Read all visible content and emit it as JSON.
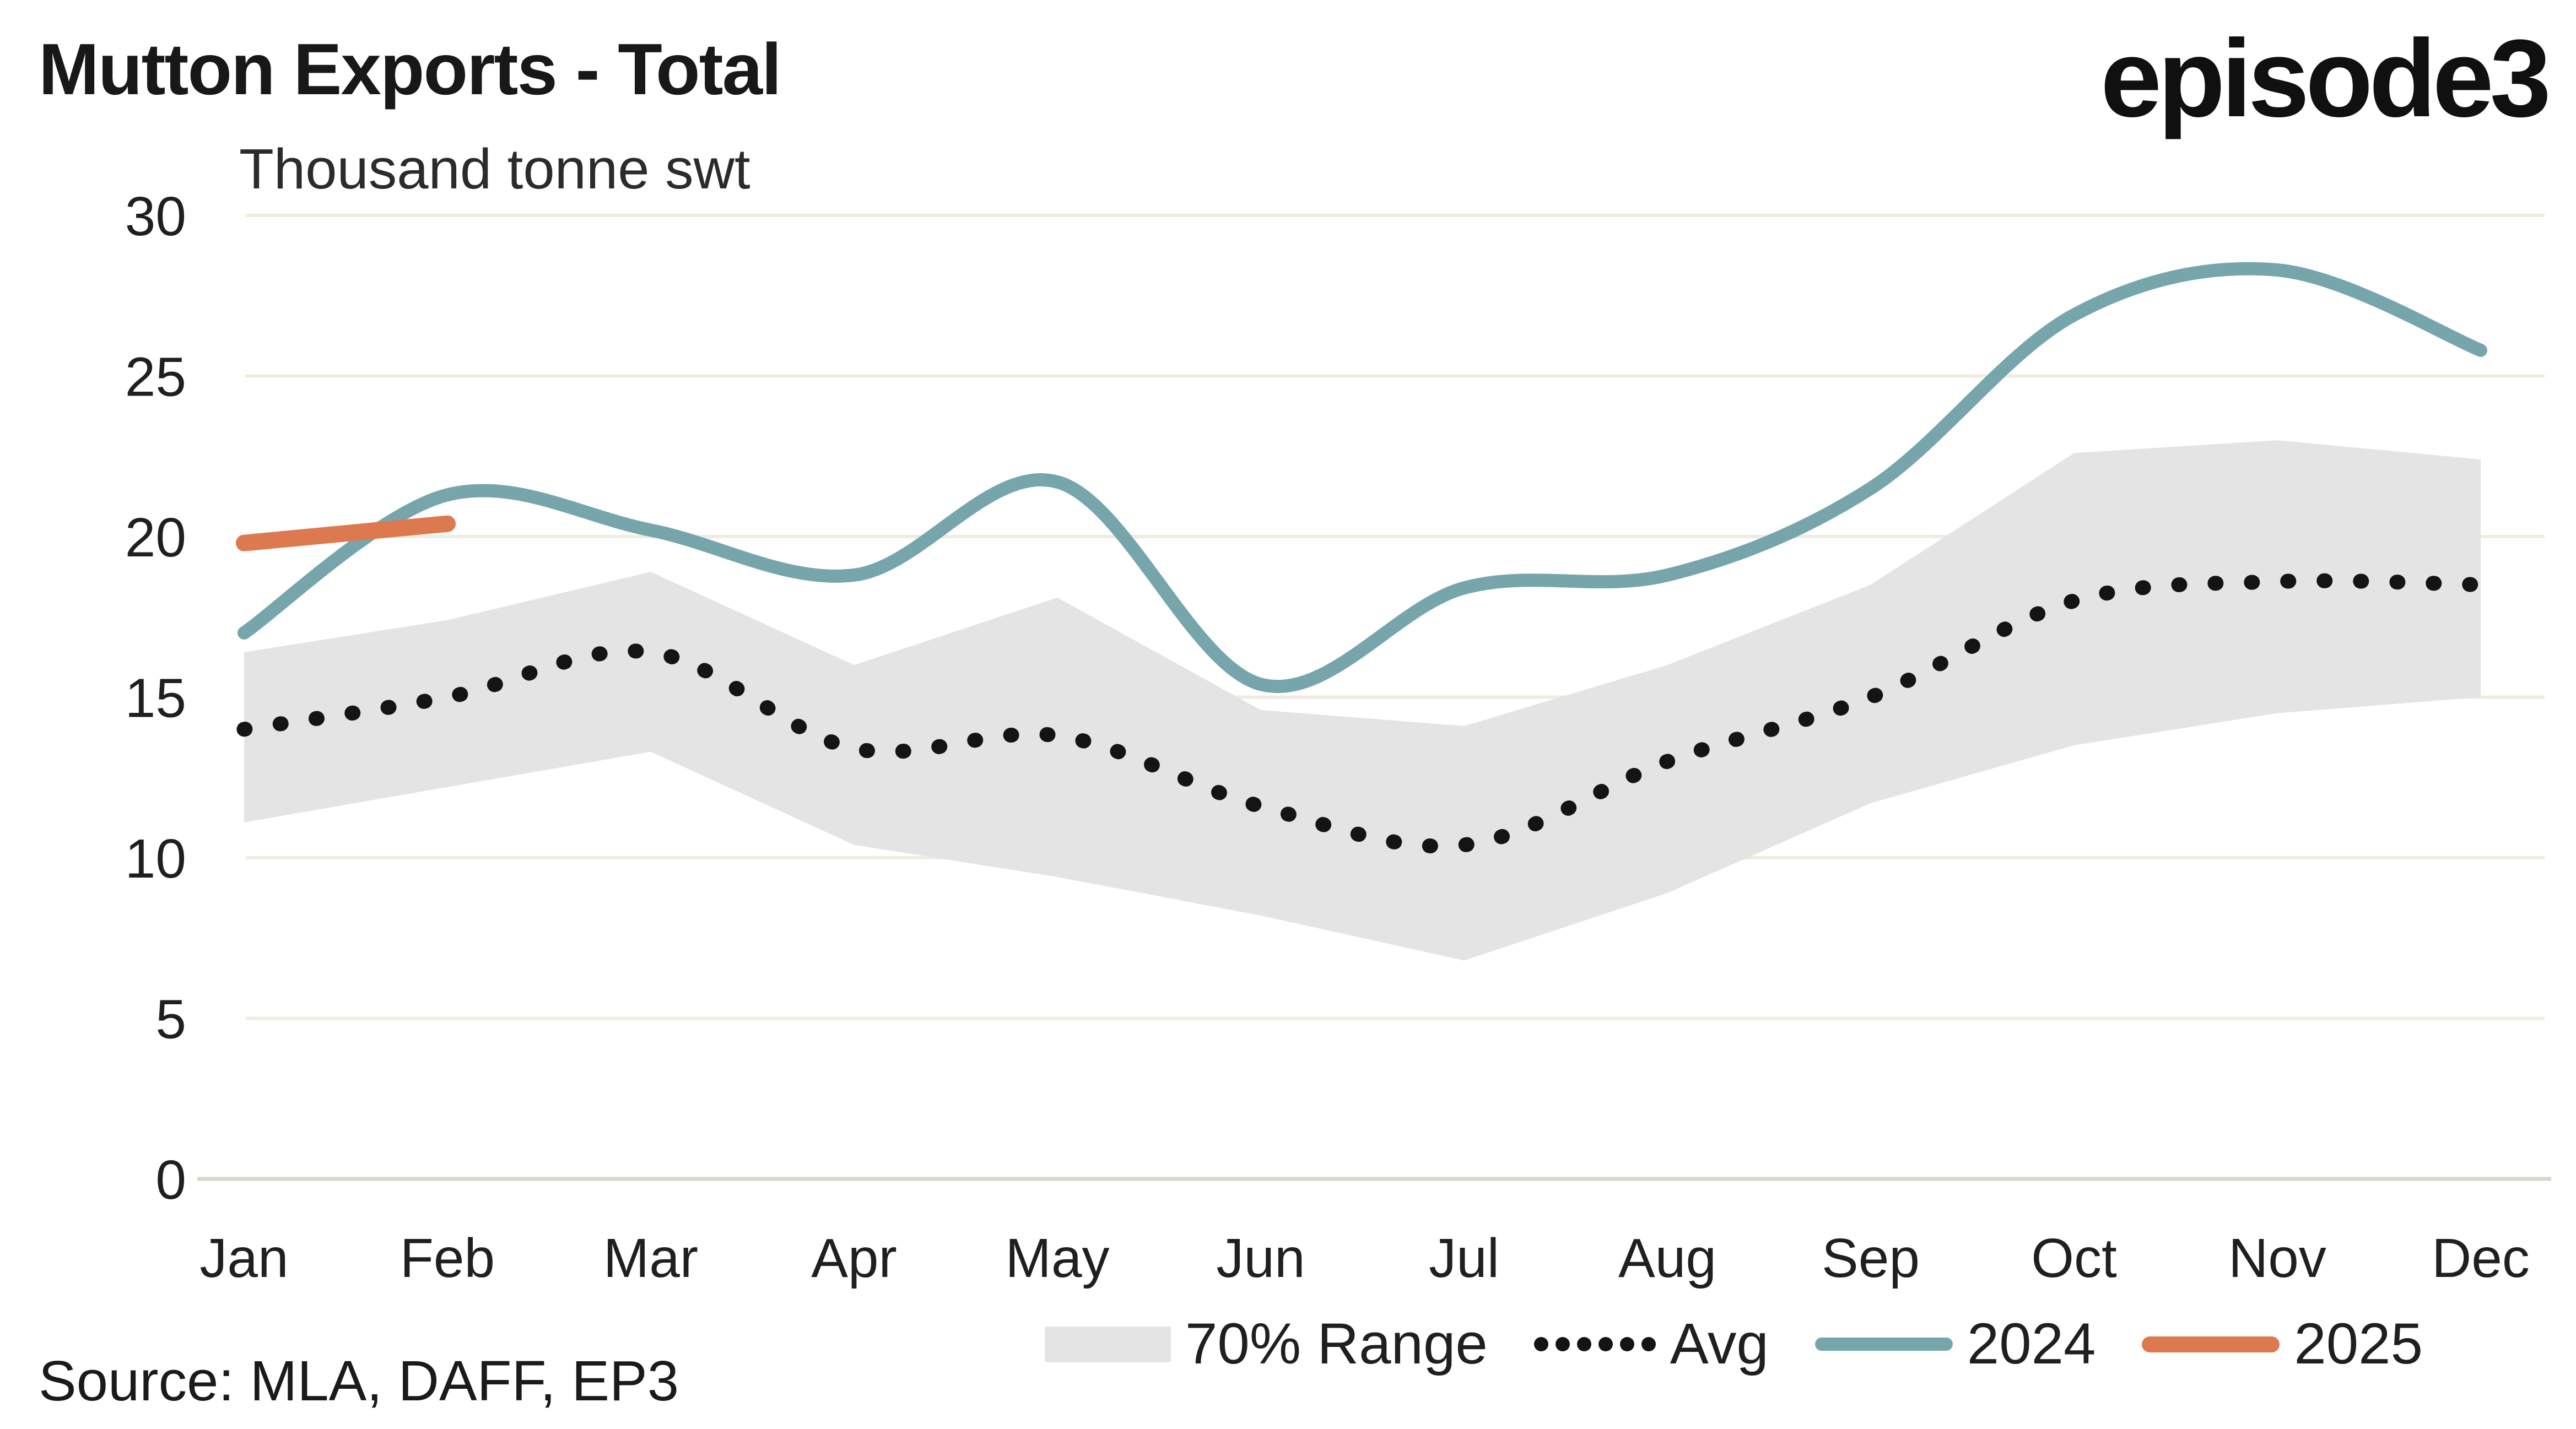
{
  "header": {
    "title": "Mutton Exports - Total",
    "subtitle": "Thousand tonne swt",
    "logo": "episode3"
  },
  "source": {
    "label": "Source: MLA, DAFF, EP3"
  },
  "legend": {
    "range_label": "70% Range",
    "avg_label": "Avg",
    "y2024_label": "2024",
    "y2025_label": "2025"
  },
  "colors": {
    "teal_2024": "#76a6ab",
    "orange_2025": "#dd794e",
    "band_gray": "#e4e4e4",
    "gridline": "#efece0",
    "axis_line": "#d9d6c9",
    "dot_black": "#141414",
    "text": "#1f1f1f"
  },
  "chart_data": {
    "type": "line",
    "title": "Mutton Exports - Total",
    "ylabel": "Thousand tonne swt",
    "xlabel": "",
    "ylim": [
      0,
      30
    ],
    "yticks": [
      0,
      5,
      10,
      15,
      20,
      25,
      30
    ],
    "grid": "horizontal",
    "legend_position": "bottom",
    "categories": [
      "Jan",
      "Feb",
      "Mar",
      "Apr",
      "May",
      "Jun",
      "Jul",
      "Aug",
      "Sep",
      "Oct",
      "Nov",
      "Dec"
    ],
    "series": [
      {
        "name": "70% Range",
        "type": "band",
        "upper": [
          16.4,
          17.4,
          18.9,
          16.0,
          18.1,
          14.6,
          14.1,
          16.0,
          18.5,
          22.6,
          23.0,
          22.4
        ],
        "lower": [
          11.1,
          12.2,
          13.3,
          10.4,
          9.4,
          8.2,
          6.8,
          8.9,
          11.7,
          13.5,
          14.5,
          15.0
        ]
      },
      {
        "name": "Avg",
        "type": "dotted-line",
        "values": [
          14.0,
          15.0,
          16.4,
          13.4,
          13.8,
          11.6,
          10.4,
          13.0,
          15.0,
          18.0,
          18.6,
          18.5
        ]
      },
      {
        "name": "2024",
        "type": "line",
        "values": [
          17.0,
          21.3,
          20.2,
          18.8,
          21.7,
          15.4,
          18.4,
          18.8,
          21.5,
          26.9,
          28.3,
          25.8
        ]
      },
      {
        "name": "2025",
        "type": "line",
        "values": [
          19.8,
          20.4
        ],
        "note": "Jan-Feb only"
      }
    ]
  }
}
